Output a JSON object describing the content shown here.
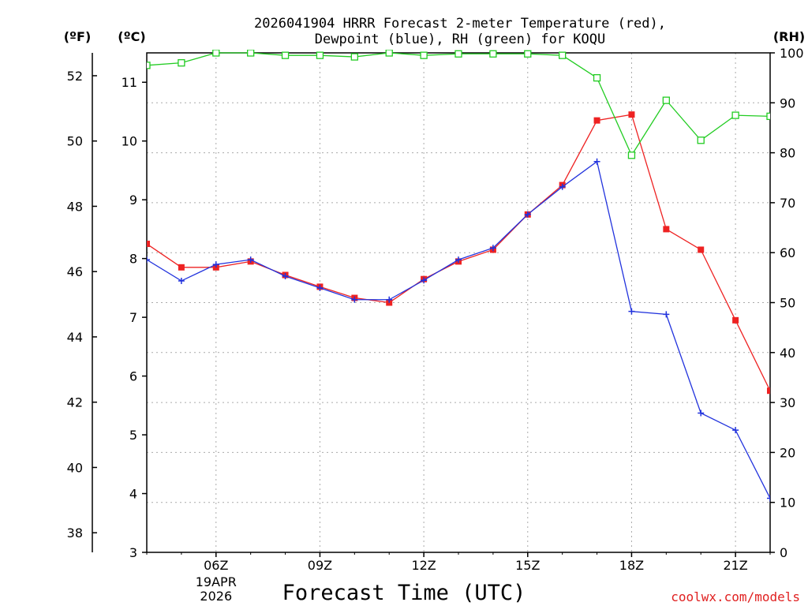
{
  "chart_data": {
    "type": "line",
    "title_line1": "2026041904 HRRR Forecast 2-meter Temperature (red),",
    "title_line2": "Dewpoint (blue), RH (green) for KOQU",
    "unit_f": "(ºF)",
    "unit_c": "(ºC)",
    "unit_rh": "(RH)",
    "xlabel": "Forecast Time (UTC)",
    "credit": "coolwx.com/models",
    "x_hours": [
      4,
      5,
      6,
      7,
      8,
      9,
      10,
      11,
      12,
      13,
      14,
      15,
      16,
      17,
      18,
      19,
      20,
      21,
      22
    ],
    "x_range": [
      4,
      22
    ],
    "x_ticks": [
      {
        "hour": 6,
        "label": "06Z"
      },
      {
        "hour": 9,
        "label": "09Z"
      },
      {
        "hour": 12,
        "label": "12Z"
      },
      {
        "hour": 15,
        "label": "15Z"
      },
      {
        "hour": 18,
        "label": "18Z"
      },
      {
        "hour": 21,
        "label": "21Z"
      }
    ],
    "date_label_line1": "19APR",
    "date_label_line2": "2026",
    "y_celsius_range": [
      3,
      11.5
    ],
    "y_celsius_ticks": [
      3,
      4,
      5,
      6,
      7,
      8,
      9,
      10,
      11
    ],
    "y_fahrenheit_ticks": [
      38,
      40,
      42,
      44,
      46,
      48,
      50,
      52
    ],
    "y_rh_range": [
      0,
      100
    ],
    "y_rh_ticks": [
      0,
      10,
      20,
      30,
      40,
      50,
      60,
      70,
      80,
      90,
      100
    ],
    "series": [
      {
        "name": "Temperature",
        "unit": "C",
        "color": "#ee2222",
        "values": [
          8.25,
          7.85,
          7.85,
          7.95,
          7.72,
          7.52,
          7.33,
          7.25,
          7.65,
          7.95,
          8.15,
          8.75,
          9.25,
          10.35,
          10.45,
          8.5,
          8.15,
          6.95,
          5.75
        ]
      },
      {
        "name": "Dewpoint",
        "unit": "C",
        "color": "#2233dd",
        "values": [
          7.98,
          7.62,
          7.9,
          7.98,
          7.7,
          7.5,
          7.3,
          7.3,
          7.63,
          7.98,
          8.18,
          8.75,
          9.22,
          9.65,
          7.1,
          7.05,
          5.37,
          5.08,
          3.92
        ]
      },
      {
        "name": "RH",
        "unit": "%",
        "color": "#22cc22",
        "values": [
          97.5,
          98.0,
          100.0,
          100.0,
          99.5,
          99.5,
          99.2,
          100.0,
          99.5,
          99.8,
          99.8,
          99.8,
          99.5,
          95.0,
          79.5,
          90.5,
          82.5,
          87.5,
          87.3
        ]
      }
    ]
  }
}
